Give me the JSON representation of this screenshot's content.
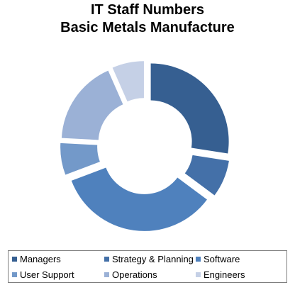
{
  "chart_data": {
    "type": "pie",
    "title": "IT Staff Numbers",
    "subtitle": "Basic Metals Manufacture",
    "categories": [
      "Managers",
      "Strategy & Planning",
      "Software",
      "User Support",
      "Operations",
      "Engineers"
    ],
    "values": [
      25,
      7,
      31,
      6,
      16,
      6
    ],
    "colors": [
      "#365f91",
      "#4470a8",
      "#4f81bd",
      "#7399c9",
      "#9bb1d6",
      "#c5d0e6"
    ],
    "legend_position": "bottom"
  }
}
